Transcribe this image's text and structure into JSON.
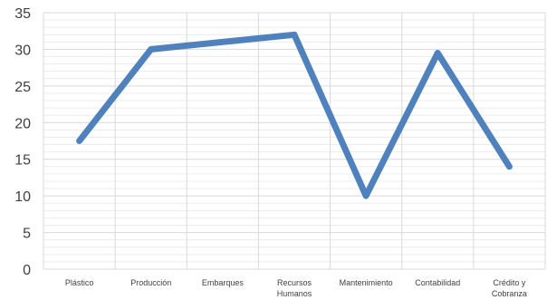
{
  "chart_data": {
    "type": "line",
    "categories": [
      "Plástico",
      "Producción",
      "Embarques",
      "Recursos Humanos",
      "Mantenimiento",
      "Contabilidad",
      "Crédito y Cobranza"
    ],
    "category_lines": [
      [
        "Plástico"
      ],
      [
        "Producción"
      ],
      [
        "Embarques"
      ],
      [
        "Recursos",
        "Humanos"
      ],
      [
        "Mantenimiento"
      ],
      [
        "Contabilidad"
      ],
      [
        "Crédito y",
        "Cobranza"
      ]
    ],
    "series": [
      {
        "values": [
          17.5,
          30,
          31,
          32,
          10,
          29.5,
          14
        ],
        "color": "#4f81bd"
      }
    ],
    "ylim": [
      0,
      35
    ],
    "yticks": [
      0,
      5,
      10,
      15,
      20,
      25,
      30,
      35
    ],
    "minor_gridlines": true,
    "grid_color": "#d9d9d9",
    "title": "",
    "xlabel": "",
    "ylabel": ""
  }
}
